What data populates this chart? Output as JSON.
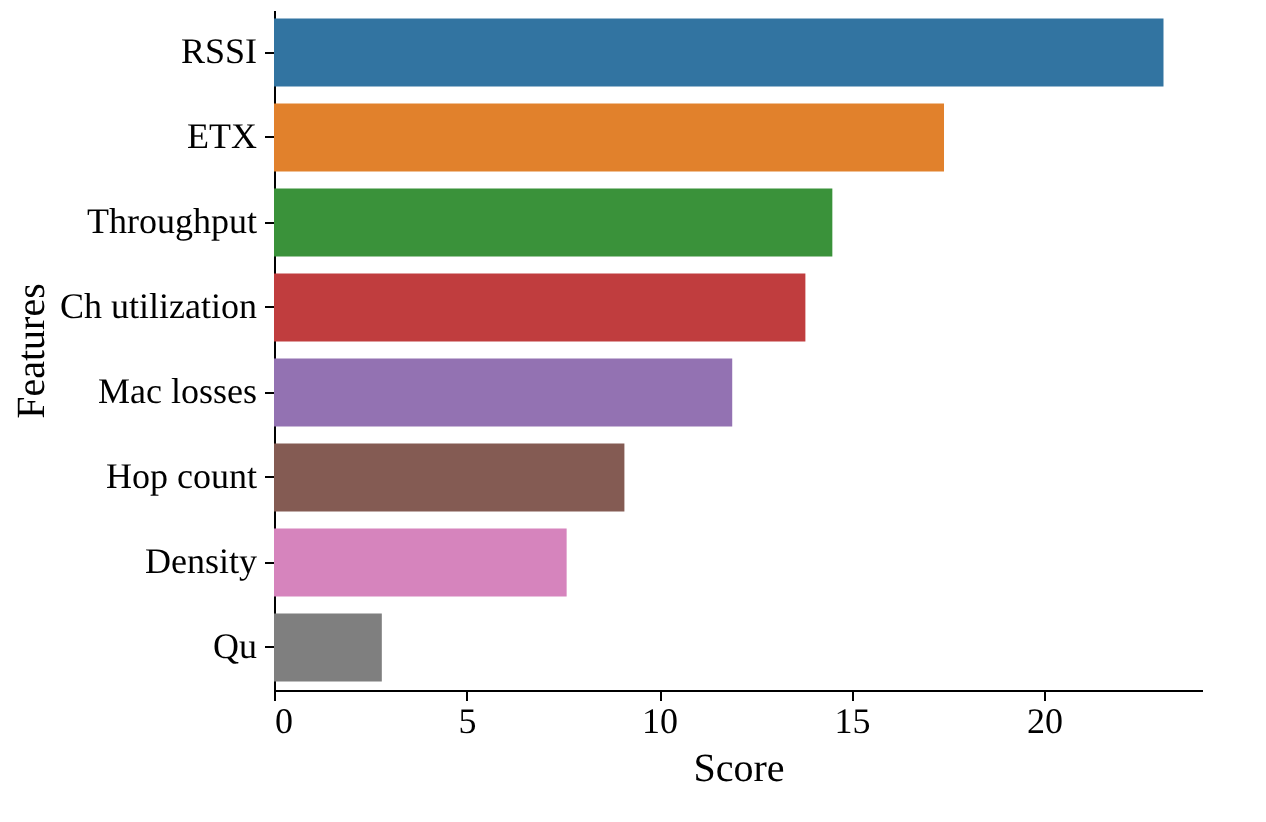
{
  "chart_data": {
    "type": "bar",
    "orientation": "horizontal",
    "xlabel": "Score",
    "ylabel": "Features",
    "categories": [
      "RSSI",
      "ETX",
      "Throughput",
      "Ch utilization",
      "Mac losses",
      "Hop count",
      "Density",
      "Qu"
    ],
    "values": [
      23.1,
      17.4,
      14.5,
      13.8,
      11.9,
      9.1,
      7.6,
      2.8
    ],
    "colors": [
      "#3274a1",
      "#e1812c",
      "#3a923a",
      "#c03d3e",
      "#9372b2",
      "#845b53",
      "#d684bd",
      "#7f7f7f"
    ],
    "xlim": [
      0,
      24.1
    ],
    "xticks": [
      0,
      5,
      10,
      15,
      20
    ]
  }
}
